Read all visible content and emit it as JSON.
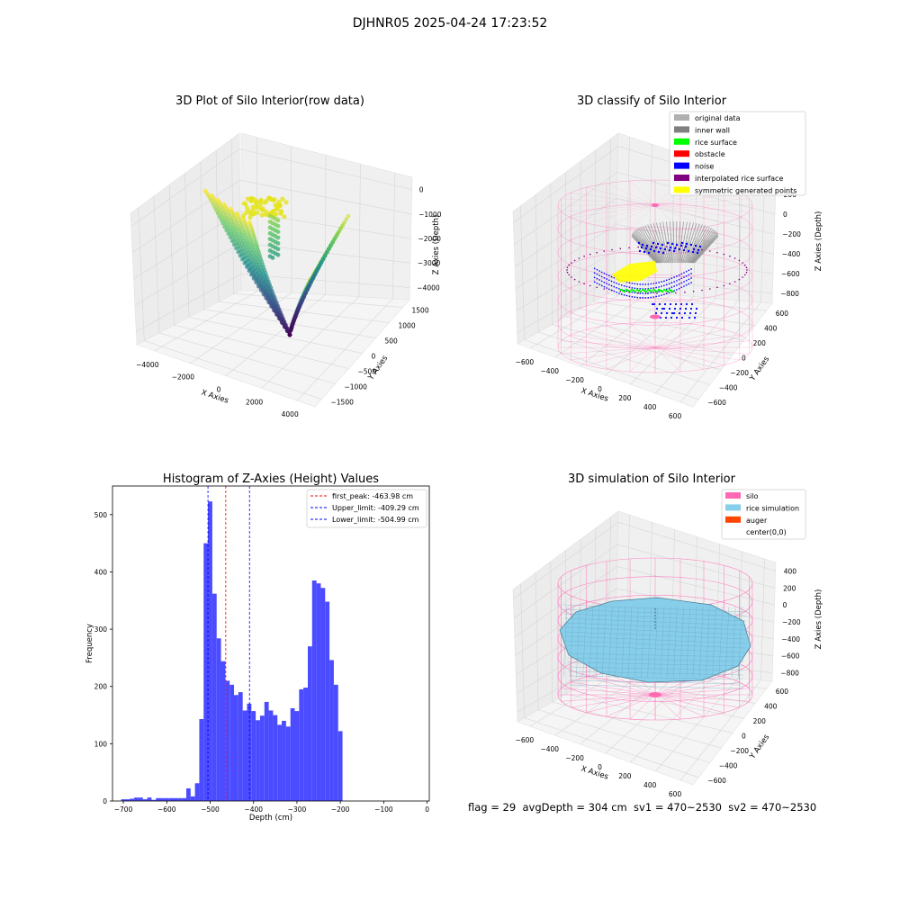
{
  "suptitle": "DJHNR05 2025-04-24 17:23:52",
  "footer": "flag = 29  avgDepth = 304 cm  sv1 = 470~2530  sv2 = 470~2530",
  "colors": {
    "silo": "#ff69b4",
    "rice": "#87ceeb",
    "auger": "#ff4500",
    "noise": "#0000ff",
    "inner_wall": "#808080",
    "original": "#b0b0b0",
    "rice_surface": "#00ff00",
    "obstacle": "#ff0000",
    "interpolated": "#800080",
    "symmetric": "#ffff00",
    "hist_bar": "#4b4bff"
  },
  "chart_data": [
    {
      "type": "scatter",
      "projection": "3d",
      "title": "3D Plot of Silo Interior(row data)",
      "xlabel": "X Axies",
      "ylabel": "Y Axies",
      "zlabel": "Z Axies (Depth)",
      "x_ticks": [
        "−4000",
        "−2000",
        "0",
        "2000",
        "4000"
      ],
      "y_ticks": [
        "−1500",
        "−1000",
        "−500",
        "0",
        "500",
        "1000",
        "1500"
      ],
      "z_ticks": [
        "−4000",
        "−3000",
        "−2000",
        "−1000",
        "0"
      ],
      "xlim": [
        -4500,
        4500
      ],
      "ylim": [
        -1500,
        1500
      ],
      "zlim": [
        -4300,
        0
      ],
      "colormap": "viridis"
    },
    {
      "type": "scatter",
      "projection": "3d",
      "title": "3D classify of Silo Interior",
      "xlabel": "X Axies",
      "ylabel": "Y Axies",
      "zlabel": "Z Axies (Depth)",
      "x_ticks": [
        "−600",
        "−400",
        "−200",
        "0",
        "200",
        "400",
        "600"
      ],
      "y_ticks": [
        "−600",
        "−400",
        "−200",
        "0",
        "200",
        "400",
        "600"
      ],
      "z_ticks": [
        "−800",
        "−600",
        "−400",
        "−200",
        "0",
        "200"
      ],
      "xlim": [
        -650,
        650
      ],
      "ylim": [
        -650,
        650
      ],
      "zlim": [
        -850,
        300
      ],
      "legend": [
        {
          "label": "original data",
          "color": "#b0b0b0"
        },
        {
          "label": "inner wall",
          "color": "#808080"
        },
        {
          "label": "rice surface",
          "color": "#00ff00"
        },
        {
          "label": "obstacle",
          "color": "#ff0000"
        },
        {
          "label": "noise",
          "color": "#0000ff"
        },
        {
          "label": "interpolated rice surface",
          "color": "#800080"
        },
        {
          "label": "symmetric generated points",
          "color": "#ffff00"
        }
      ],
      "legend_loc": "upper right"
    },
    {
      "type": "bar",
      "title": "Histogram of Z-Axies (Height) Values",
      "xlabel": "Depth (cm)",
      "ylabel": "Frequency",
      "xlim": [
        -725,
        5
      ],
      "ylim": [
        0,
        550
      ],
      "x_ticks": [
        -700,
        -600,
        -500,
        -400,
        -300,
        -200,
        -100,
        0
      ],
      "x_tick_labels": [
        "−700",
        "−600",
        "−500",
        "−400",
        "−300",
        "−200",
        "−100",
        "0"
      ],
      "y_ticks": [
        0,
        100,
        200,
        300,
        400,
        500
      ],
      "bin_edges_start": -705,
      "bin_width": 10,
      "values": [
        3,
        3,
        4,
        6,
        6,
        3,
        6,
        2,
        5,
        5,
        5,
        5,
        5,
        5,
        5,
        22,
        8,
        31,
        143,
        450,
        523,
        362,
        284,
        244,
        210,
        203,
        185,
        190,
        158,
        170,
        157,
        141,
        149,
        173,
        158,
        150,
        133,
        140,
        130,
        162,
        157,
        195,
        198,
        270,
        385,
        380,
        372,
        348,
        246,
        203,
        122
      ],
      "vlines": [
        {
          "label": "first_peak: -463.98 cm",
          "x": -463.98,
          "color": "#ff0000"
        },
        {
          "label": "Upper_limit: -409.29 cm",
          "x": -409.29,
          "color": "#0000ff"
        },
        {
          "label": "Lower_limit: -504.99 cm",
          "x": -504.99,
          "color": "#0000ff"
        }
      ],
      "legend_loc": "upper right"
    },
    {
      "type": "surface",
      "projection": "3d",
      "title": "3D simulation of Silo Interior",
      "xlabel": "X Axies",
      "ylabel": "Y Axies",
      "zlabel": "Z Axies (Depth)",
      "x_ticks": [
        "−600",
        "−400",
        "−200",
        "0",
        "200",
        "400",
        "600"
      ],
      "y_ticks": [
        "−600",
        "−400",
        "−200",
        "0",
        "200",
        "400",
        "600"
      ],
      "z_ticks": [
        "−800",
        "−600",
        "−400",
        "−200",
        "0",
        "200",
        "400"
      ],
      "xlim": [
        -650,
        650
      ],
      "ylim": [
        -650,
        650
      ],
      "zlim": [
        -850,
        450
      ],
      "legend": [
        {
          "label": "silo",
          "color": "#ff69b4"
        },
        {
          "label": "rice simulation",
          "color": "#87ceeb"
        },
        {
          "label": "auger",
          "color": "#ff4500"
        },
        {
          "label": "center(0,0)",
          "color": "#ffffff"
        }
      ],
      "legend_loc": "upper right"
    }
  ]
}
